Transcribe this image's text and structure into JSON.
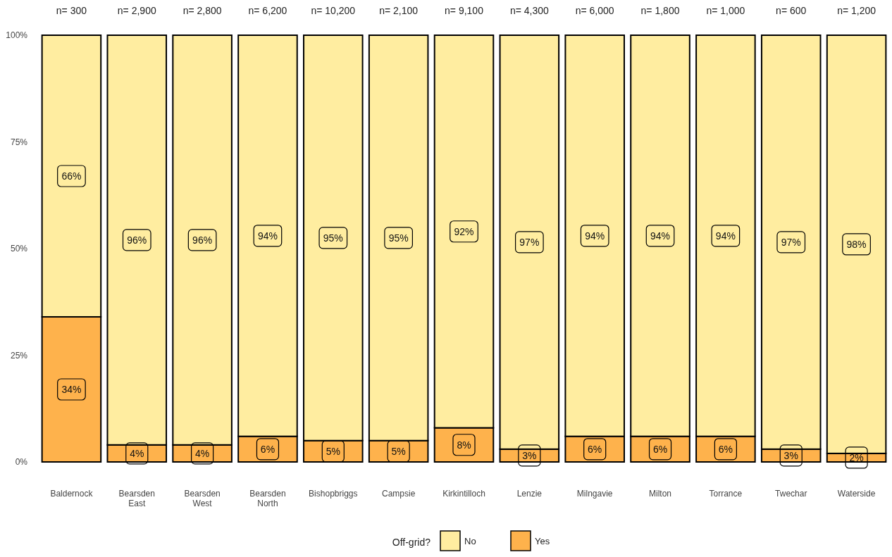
{
  "chart_data": {
    "type": "bar",
    "stacked": true,
    "legend": "bottom",
    "legend_title": "Off-grid?",
    "grid": false,
    "categories": [
      "Baldernock",
      "Bearsden East",
      "Bearsden West",
      "Bearsden North",
      "Bishopbriggs",
      "Campsie",
      "Kirkintilloch",
      "Lenzie",
      "Milngavie",
      "Milton",
      "Torrance",
      "Twechar",
      "Waterside"
    ],
    "series": [
      {
        "name": "Yes",
        "color": "#feb24c",
        "values": [
          34,
          4,
          4,
          6,
          5,
          5,
          8,
          3,
          6,
          6,
          6,
          3,
          2
        ],
        "value_labels": [
          "34%",
          "4%",
          "4%",
          "6%",
          "5%",
          "5%",
          "8%",
          "3%",
          "6%",
          "6%",
          "6%",
          "3%",
          "2%"
        ]
      },
      {
        "name": "No",
        "color": "#ffeda0",
        "values": [
          66,
          96,
          96,
          94,
          95,
          95,
          92,
          97,
          94,
          94,
          94,
          97,
          98
        ],
        "value_labels": [
          "66%",
          "96%",
          "96%",
          "94%",
          "95%",
          "95%",
          "92%",
          "97%",
          "94%",
          "94%",
          "94%",
          "97%",
          "98%"
        ]
      }
    ],
    "ylim": [
      0,
      100
    ],
    "yticks": [
      {
        "value": 0,
        "label": "0%"
      },
      {
        "value": 25,
        "label": "25%"
      },
      {
        "value": 50,
        "label": "50%"
      },
      {
        "value": 75,
        "label": "75%"
      },
      {
        "value": 100,
        "label": "100%"
      }
    ],
    "annotations": [
      "n= 300",
      "n= 2,900",
      "n= 2,800",
      "n= 6,200",
      "n= 10,200",
      "n= 2,100",
      "n= 9,100",
      "n= 4,300",
      "n= 6,000",
      "n= 1,800",
      "n= 1,000",
      "n= 600",
      "n= 1,200"
    ]
  }
}
